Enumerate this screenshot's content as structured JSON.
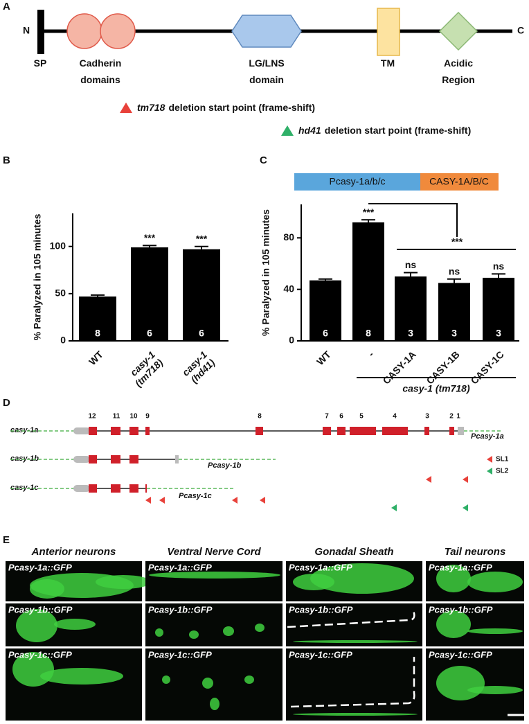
{
  "panel_labels": [
    "A",
    "B",
    "C",
    "D",
    "E"
  ],
  "domain_diagram": {
    "n_term": "N",
    "c_term": "C",
    "domains": [
      "SP",
      "Cadherin domains",
      "LG/LNS domain",
      "TM",
      "Acidic Region"
    ],
    "legend": [
      {
        "allele": "tm718",
        "text": "deletion start point (frame-shift)"
      },
      {
        "allele": "hd41",
        "text": "deletion start point (frame-shift)"
      }
    ]
  },
  "chart_data": [
    {
      "type": "bar",
      "y_label": "% Paralyzed in 105 minutes",
      "categories": [
        "WT",
        "casy-1 (tm718)",
        "casy-1 (hd41)"
      ],
      "values": [
        47,
        99,
        97
      ],
      "errors": [
        1.5,
        2,
        3
      ],
      "n": [
        8,
        6,
        6
      ],
      "significance": [
        null,
        "***",
        "***"
      ],
      "color": "#000000",
      "ylim": [
        0,
        135
      ],
      "yticks": [
        0,
        50,
        100
      ]
    },
    {
      "type": "bar",
      "y_label": "% Paralyzed in 105 minutes",
      "construct": [
        "Pcasy-1a/b/c",
        "CASY-1A/B/C"
      ],
      "categories": [
        "WT",
        "-",
        "CASY-1A",
        "CASY-1B",
        "CASY-1C"
      ],
      "values": [
        47,
        92,
        50,
        45,
        49
      ],
      "errors": [
        1,
        2,
        3,
        3,
        3
      ],
      "n": [
        6,
        8,
        3,
        3,
        3
      ],
      "significance": [
        null,
        "***",
        "ns",
        "ns",
        "ns"
      ],
      "comparison": "***",
      "group_label": "casy-1 (tm718)",
      "color": "#000000",
      "ylim": [
        0,
        106
      ],
      "yticks": [
        0,
        40,
        80
      ]
    }
  ],
  "gene_models": {
    "exon_numbers": [
      "12",
      "11",
      "10",
      "9",
      "8",
      "7",
      "6",
      "5",
      "4",
      "3",
      "2",
      "1"
    ],
    "transcripts": [
      {
        "name": "casy-1a",
        "promoter": "Pcasy-1a"
      },
      {
        "name": "casy-1b",
        "promoter": "Pcasy-1b"
      },
      {
        "name": "casy-1c",
        "promoter": "Pcasy-1c"
      }
    ],
    "legend": [
      "SL1",
      "SL2"
    ]
  },
  "expression": {
    "columns": [
      "Anterior neurons",
      "Ventral Nerve Cord",
      "Gonadal Sheath",
      "Tail neurons"
    ],
    "rows": [
      "Pcasy-1a::GFP",
      "Pcasy-1b::GFP",
      "Pcasy-1c::GFP"
    ]
  }
}
